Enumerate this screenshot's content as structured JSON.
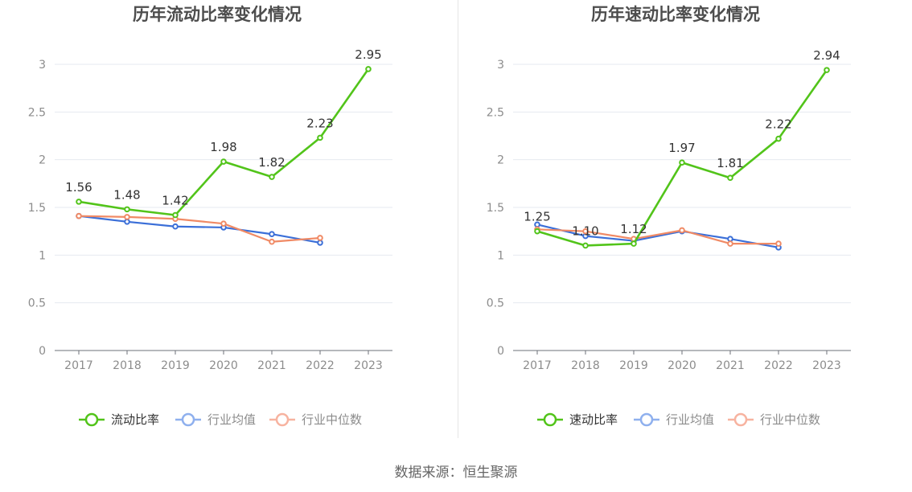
{
  "colors": {
    "primary": "#52c41a",
    "average": "#3b6fd8",
    "median": "#f08a65",
    "average_legend": "#8fb0ee",
    "median_legend": "#f7b3a0"
  },
  "source": "数据来源：恒生聚源",
  "chart_data": [
    {
      "type": "line",
      "title": "历年流动比率变化情况",
      "categories": [
        "2017",
        "2018",
        "2019",
        "2020",
        "2021",
        "2022",
        "2023"
      ],
      "ylim": [
        0,
        3
      ],
      "yticks": [
        "0",
        "0.5",
        "1",
        "1.5",
        "2",
        "2.5",
        "3"
      ],
      "grid": true,
      "legend_position": "bottom",
      "series": [
        {
          "name": "流动比率",
          "values": [
            1.56,
            1.48,
            1.42,
            1.98,
            1.82,
            2.23,
            2.95
          ],
          "labels": [
            "1.56",
            "1.48",
            "1.42",
            "1.98",
            "1.82",
            "2.23",
            "2.95"
          ]
        },
        {
          "name": "行业均值",
          "values": [
            1.41,
            1.35,
            1.3,
            1.29,
            1.22,
            1.13,
            null
          ]
        },
        {
          "name": "行业中位数",
          "values": [
            1.41,
            1.4,
            1.38,
            1.33,
            1.14,
            1.18,
            null
          ]
        }
      ]
    },
    {
      "type": "line",
      "title": "历年速动比率变化情况",
      "categories": [
        "2017",
        "2018",
        "2019",
        "2020",
        "2021",
        "2022",
        "2023"
      ],
      "ylim": [
        0,
        3
      ],
      "yticks": [
        "0",
        "0.5",
        "1",
        "1.5",
        "2",
        "2.5",
        "3"
      ],
      "grid": true,
      "legend_position": "bottom",
      "series": [
        {
          "name": "速动比率",
          "values": [
            1.25,
            1.1,
            1.12,
            1.97,
            1.81,
            2.22,
            2.94
          ],
          "labels": [
            "1.25",
            "1.10",
            "1.12",
            "1.97",
            "1.81",
            "2.22",
            "2.94"
          ]
        },
        {
          "name": "行业均值",
          "values": [
            1.32,
            1.2,
            1.15,
            1.25,
            1.17,
            1.08,
            null
          ]
        },
        {
          "name": "行业中位数",
          "values": [
            1.27,
            1.25,
            1.17,
            1.26,
            1.12,
            1.12,
            null
          ]
        }
      ]
    }
  ]
}
